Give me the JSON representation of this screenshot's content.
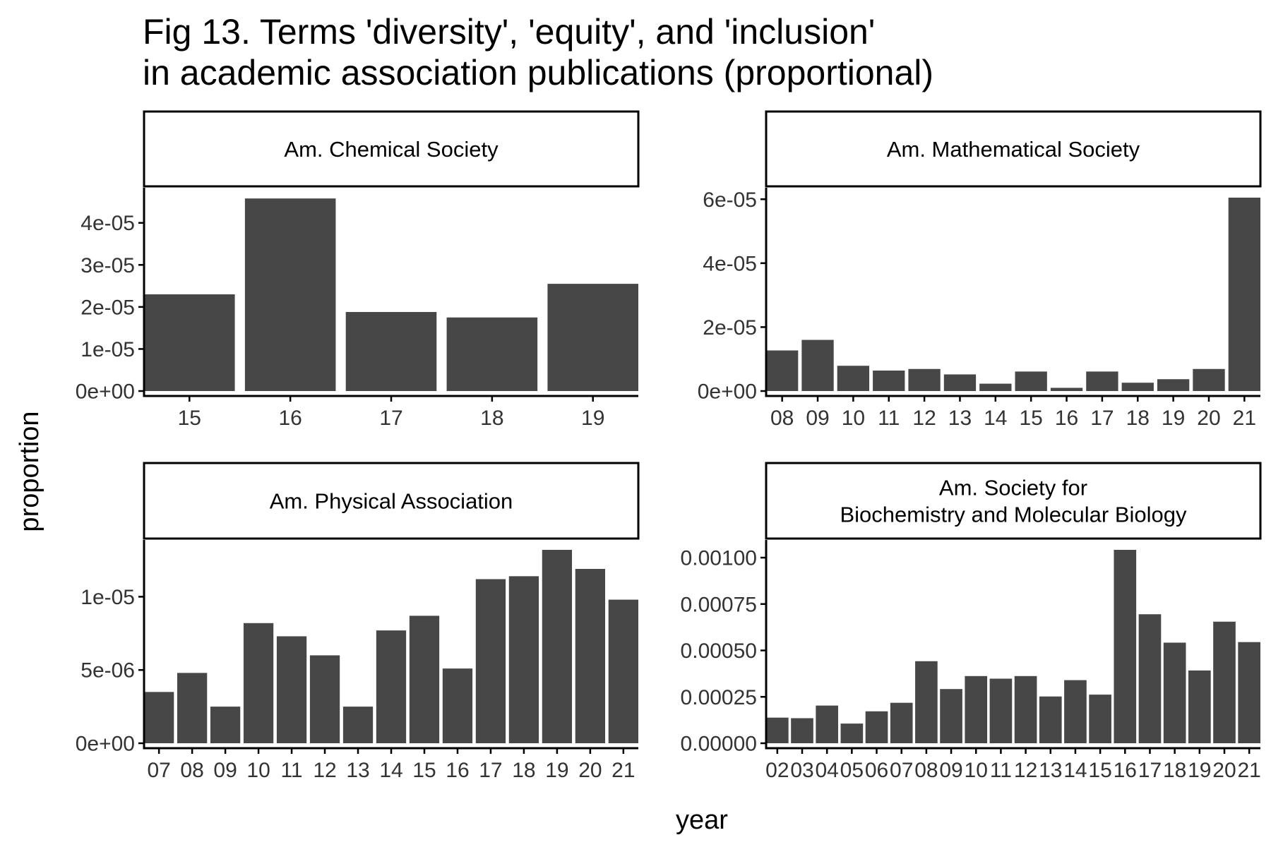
{
  "title": [
    "Fig 13. Terms 'diversity', 'equity', and 'inclusion'",
    "in academic association publications (proportional)"
  ],
  "colors": {
    "bar": "#474747",
    "axis": "#000000",
    "tick_text": "#333333",
    "background": "#ffffff"
  },
  "chart_data": [
    {
      "type": "bar",
      "panel": "Am. Chemical Society",
      "strip_label": [
        "Am. Chemical Society"
      ],
      "categories": [
        "15",
        "16",
        "17",
        "18",
        "19"
      ],
      "values": [
        2.3e-05,
        4.58e-05,
        1.88e-05,
        1.75e-05,
        2.55e-05
      ],
      "ylim": [
        0,
        4.6e-05
      ],
      "yticks": [
        0,
        1e-05,
        2e-05,
        3e-05,
        4e-05
      ],
      "ytick_labels": [
        "0e+00",
        "1e-05",
        "2e-05",
        "3e-05",
        "4e-05"
      ],
      "xlabel": "year",
      "ylabel": "proportion",
      "grid": false,
      "legend": "none"
    },
    {
      "type": "bar",
      "panel": "Am. Mathematical Society",
      "strip_label": [
        "Am. Mathematical Society"
      ],
      "categories": [
        "08",
        "09",
        "10",
        "11",
        "12",
        "13",
        "14",
        "15",
        "16",
        "17",
        "18",
        "19",
        "20",
        "21"
      ],
      "values": [
        1.27e-05,
        1.6e-05,
        7.9e-06,
        6.4e-06,
        6.9e-06,
        5.2e-06,
        2.3e-06,
        6.1e-06,
        1e-06,
        6.1e-06,
        2.6e-06,
        3.7e-06,
        6.9e-06,
        6.05e-05
      ],
      "ylim": [
        0,
        6.05e-05
      ],
      "yticks": [
        0,
        2e-05,
        4e-05,
        6e-05
      ],
      "ytick_labels": [
        "0e+00",
        "2e-05",
        "4e-05",
        "6e-05"
      ],
      "xlabel": "year",
      "ylabel": "proportion",
      "grid": false,
      "legend": "none"
    },
    {
      "type": "bar",
      "panel": "Am. Physical Association",
      "strip_label": [
        "Am. Physical Association"
      ],
      "categories": [
        "07",
        "08",
        "09",
        "10",
        "11",
        "12",
        "13",
        "14",
        "15",
        "16",
        "17",
        "18",
        "19",
        "20",
        "21"
      ],
      "values": [
        3.5e-06,
        4.8e-06,
        2.5e-06,
        8.2e-06,
        7.3e-06,
        6e-06,
        2.5e-06,
        7.7e-06,
        8.7e-06,
        5.1e-06,
        1.12e-05,
        1.14e-05,
        1.32e-05,
        1.19e-05,
        9.8e-06
      ],
      "ylim": [
        0,
        1.32e-05
      ],
      "yticks": [
        0,
        5e-06,
        1e-05
      ],
      "ytick_labels": [
        "0e+00",
        "5e-06",
        "1e-05"
      ],
      "xlabel": "year",
      "ylabel": "proportion",
      "grid": false,
      "legend": "none"
    },
    {
      "type": "bar",
      "panel": "Am. Society for Biochemistry and Molecular Biology",
      "strip_label": [
        "Am. Society for",
        "Biochemistry and Molecular Biology"
      ],
      "categories": [
        "02",
        "03",
        "04",
        "05",
        "06",
        "07",
        "08",
        "09",
        "10",
        "11",
        "12",
        "13",
        "14",
        "15",
        "16",
        "17",
        "18",
        "19",
        "20",
        "21"
      ],
      "values": [
        0.000138,
        0.000135,
        0.000203,
        0.000106,
        0.000172,
        0.000218,
        0.000442,
        0.000292,
        0.000362,
        0.000348,
        0.000362,
        0.000252,
        0.00034,
        0.000262,
        0.001042,
        0.000695,
        0.000542,
        0.000392,
        0.000655,
        0.000545
      ],
      "ylim": [
        0,
        0.001042
      ],
      "yticks": [
        0,
        0.00025,
        0.0005,
        0.00075,
        0.001
      ],
      "ytick_labels": [
        "0.00000",
        "0.00025",
        "0.00050",
        "0.00075",
        "0.00100"
      ],
      "xlabel": "year",
      "ylabel": "proportion",
      "grid": false,
      "legend": "none"
    }
  ]
}
